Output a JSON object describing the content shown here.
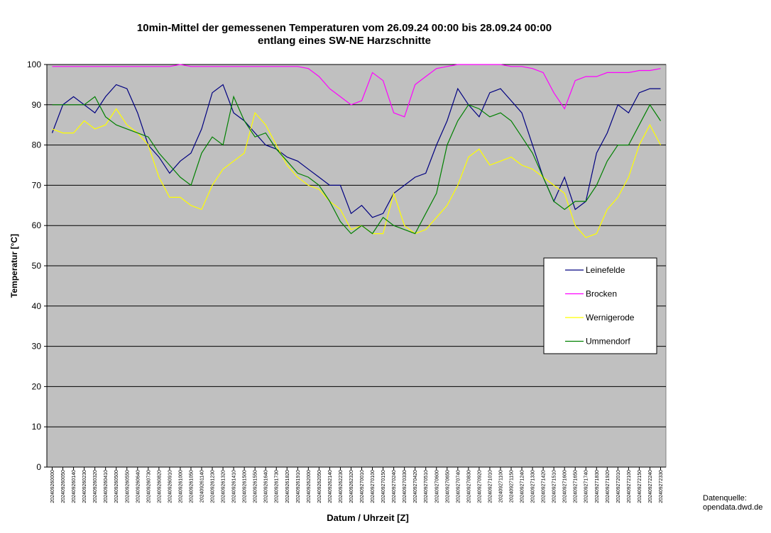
{
  "chart_data": {
    "type": "line",
    "title": "10min-Mittel der gemessenen Temperaturen vom 26.09.24 00:00 bis 28.09.24 00:00",
    "subtitle": "entlang eines SW-NE Harzschnitte",
    "y_label": "Temperatur [°C]",
    "x_label": "Datum / Uhrzeit [Z]",
    "annotations": [
      "Datenquelle:",
      "opendata.dwd.de"
    ],
    "categories": [
      "202409260000",
      "202409260050",
      "202409260140",
      "202409260230",
      "202409260320",
      "202409260410",
      "202409260500",
      "202409260550",
      "202409260640",
      "202409260730",
      "202409260820",
      "202409260910",
      "202409261000",
      "202409261050",
      "202409261140",
      "202409261230",
      "202409261320",
      "202409261410",
      "202409261500",
      "202409261550",
      "202409261640",
      "202409261730",
      "202409261820",
      "202409261910",
      "202409262000",
      "202409262050",
      "202409262140",
      "202409262230",
      "202409262320",
      "202409270010",
      "202409270100",
      "202409270150",
      "202409270240",
      "202409270330",
      "202409270420",
      "202409270510",
      "202409270600",
      "202409270650",
      "202409270740",
      "202409270830",
      "202409270920",
      "202409271010",
      "202409271100",
      "202409271150",
      "202409271240",
      "202409271330",
      "202409271420",
      "202409271510",
      "202409271600",
      "202409271650",
      "202409271740",
      "202409271830",
      "202409271920",
      "202409272010",
      "202409272100",
      "202409272150",
      "202409272240",
      "202409272330"
    ],
    "series": [
      {
        "name": "Leinefelde",
        "color": "#000080",
        "values": [
          83,
          90,
          92,
          90,
          88,
          92,
          95,
          94,
          88,
          80,
          77,
          73,
          76,
          78,
          84,
          93,
          95,
          88,
          86,
          83,
          80,
          79,
          77,
          76,
          74,
          72,
          70,
          70,
          63,
          65,
          62,
          63,
          68,
          70,
          72,
          73,
          80,
          86,
          94,
          90,
          87,
          93,
          94,
          91,
          88,
          80,
          72,
          66,
          72,
          64,
          66,
          78,
          83,
          90,
          88,
          93,
          94,
          94
        ]
      },
      {
        "name": "Brocken",
        "color": "#ff00ff",
        "values": [
          99.5,
          99.5,
          99.5,
          99.5,
          99.5,
          99.5,
          99.5,
          99.5,
          99.5,
          99.5,
          99.5,
          99.5,
          100,
          99.5,
          99.5,
          99.5,
          99.5,
          99.5,
          99.5,
          99.5,
          99.5,
          99.5,
          99.5,
          99.5,
          99,
          97,
          94,
          92,
          90,
          91,
          98,
          96,
          88,
          87,
          95,
          97,
          99,
          99.5,
          100,
          100,
          100,
          100,
          100,
          99.5,
          99.5,
          99,
          98,
          93,
          89,
          96,
          97,
          97,
          98,
          98,
          98,
          98.5,
          98.5,
          99
        ]
      },
      {
        "name": "Wernigerode",
        "color": "#ffff00",
        "values": [
          84,
          83,
          83,
          86,
          84,
          85,
          89,
          85,
          83,
          80,
          72,
          67,
          67,
          65,
          64,
          70,
          74,
          76,
          78,
          88,
          85,
          80,
          75,
          72,
          70,
          69,
          66,
          64,
          59,
          60,
          58,
          58,
          68,
          60,
          58,
          59,
          62,
          65,
          70,
          77,
          79,
          75,
          76,
          77,
          75,
          74,
          72,
          70,
          68,
          60,
          57,
          58,
          64,
          67,
          72,
          80,
          85,
          80
        ]
      },
      {
        "name": "Ummendorf",
        "color": "#008000",
        "values": [
          90,
          90,
          90,
          90,
          92,
          87,
          85,
          84,
          83,
          82,
          78,
          75,
          72,
          70,
          78,
          82,
          80,
          92,
          86,
          82,
          83,
          79,
          76,
          73,
          72,
          70,
          66,
          61,
          58,
          60,
          58,
          62,
          60,
          59,
          58,
          63,
          68,
          80,
          86,
          90,
          89,
          87,
          88,
          86,
          82,
          78,
          72,
          66,
          64,
          66,
          66,
          70,
          76,
          80,
          80,
          85,
          90,
          86
        ]
      }
    ],
    "ylim": [
      0,
      100
    ],
    "yticks": [
      0,
      10,
      20,
      30,
      40,
      50,
      60,
      70,
      80,
      90,
      100
    ],
    "grid": true,
    "legend": "right",
    "plot_color": "#c0c0c0"
  }
}
